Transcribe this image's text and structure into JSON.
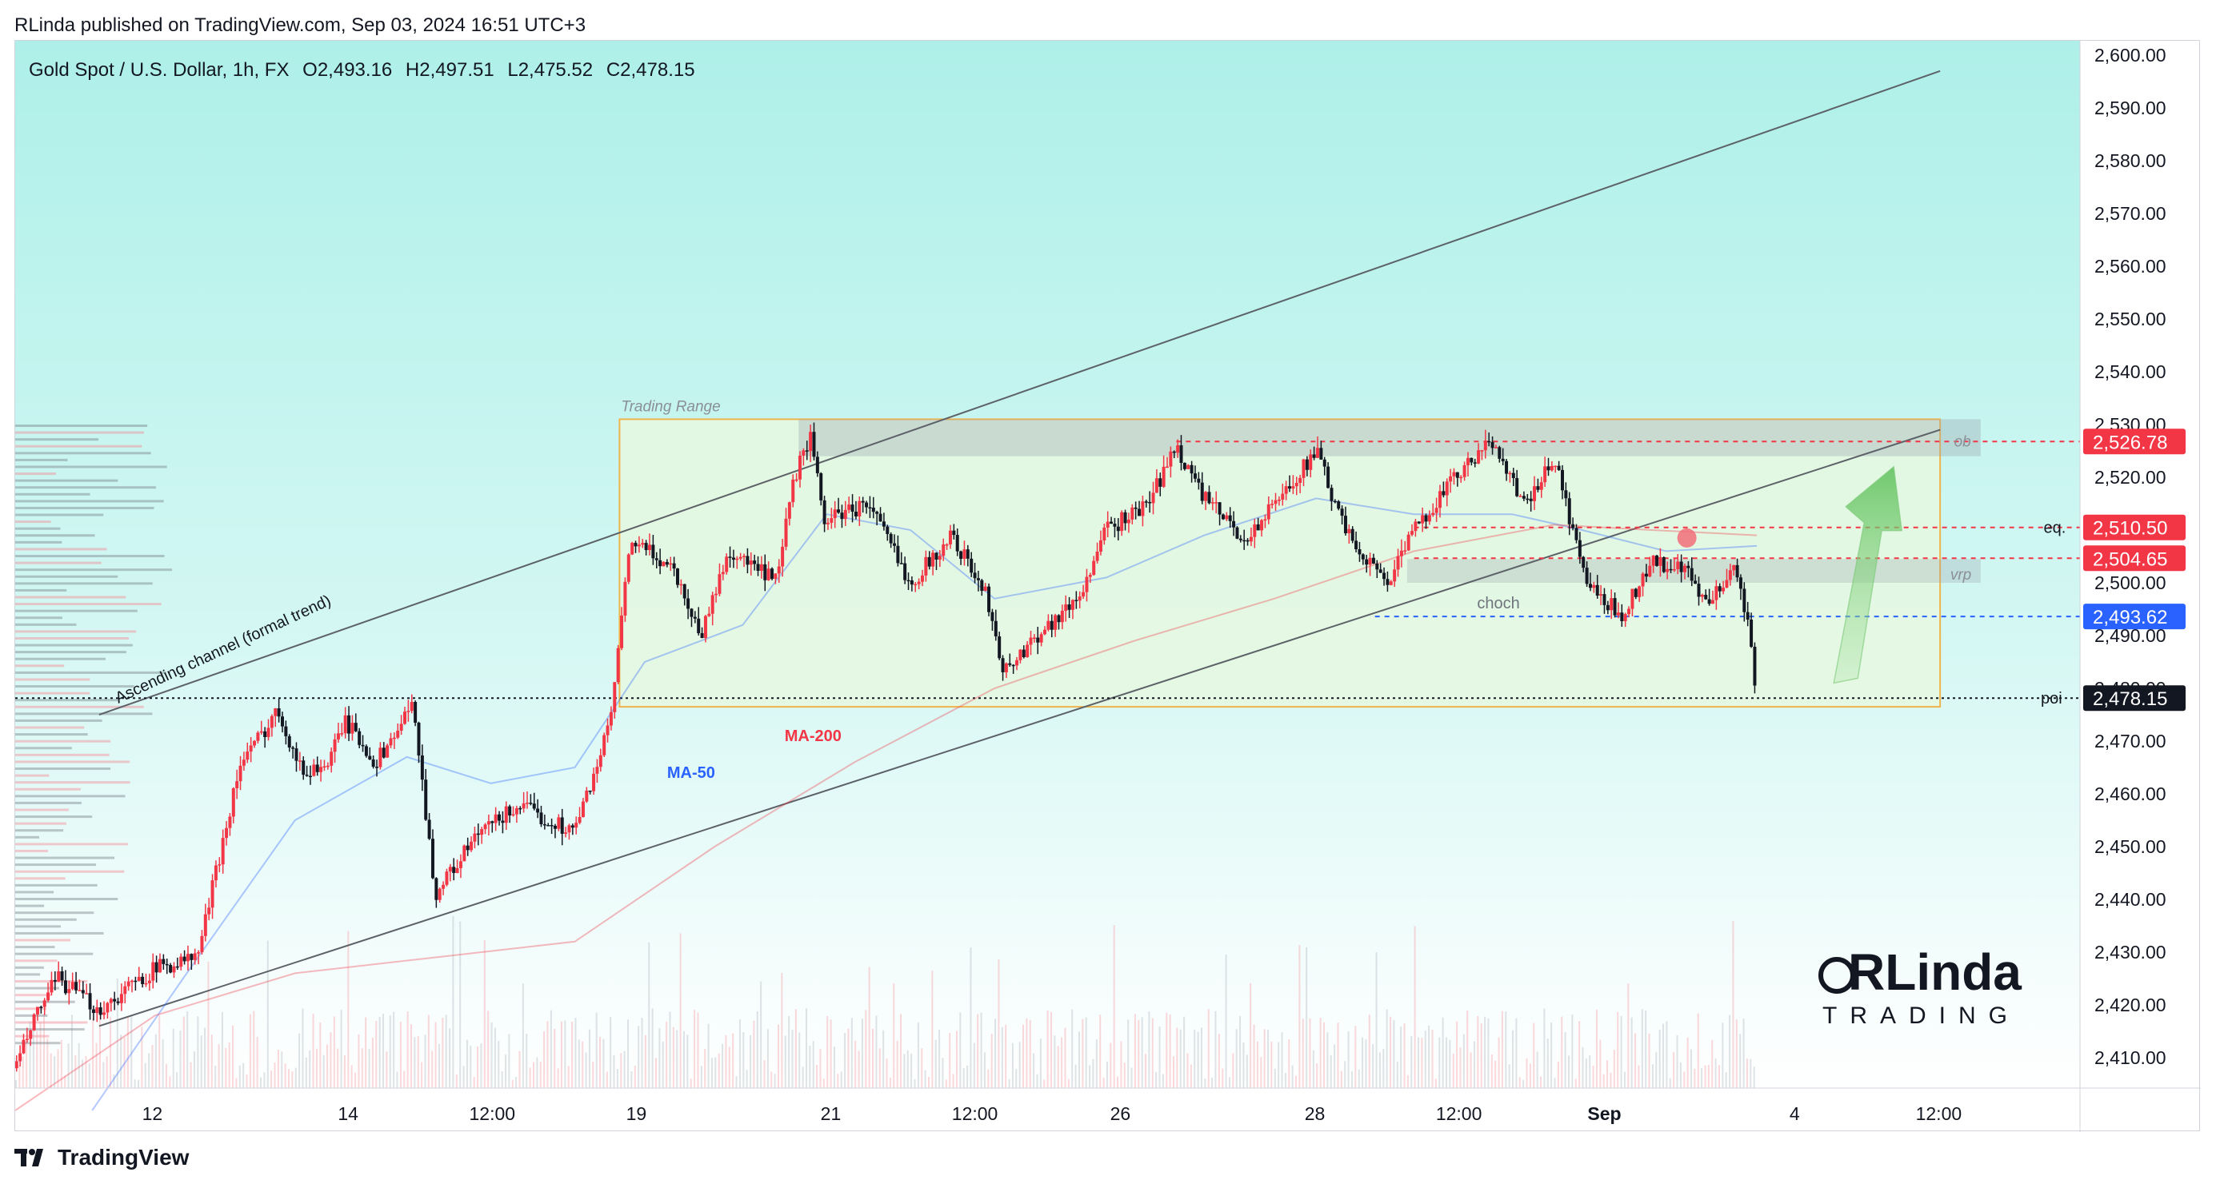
{
  "header": {
    "published_by": "RLinda published on TradingView.com, Sep 03, 2024 16:51 UTC+3"
  },
  "legend": {
    "symbol": "Gold Spot / U.S. Dollar, 1h, FX",
    "open": "O2,493.16",
    "high": "H2,497.51",
    "low": "L2,475.52",
    "close": "C2,478.15"
  },
  "footer": {
    "brand": "TradingView",
    "logo_icon": "tradingview-logo-icon"
  },
  "watermark": {
    "text_top": "RLinda",
    "text_bottom": "TRADING"
  },
  "colors": {
    "up": "#f23645",
    "down": "#131722",
    "ma50": "#2962ff",
    "ma200": "#f23645",
    "range_fill": "#e6f8e0",
    "range_border": "#f0b44c",
    "accent_blue": "#2962ff",
    "accent_red": "#f23645",
    "bg_top": "#aff0ea"
  },
  "chart_data": {
    "type": "candlestick",
    "title": "Gold Spot / U.S. Dollar, 1h, FX",
    "ylim": [
      2400,
      2600
    ],
    "y_ticks": [
      2410,
      2420,
      2430,
      2440,
      2450,
      2460,
      2470,
      2480,
      2490,
      2500,
      2510,
      2520,
      2530,
      2540,
      2550,
      2560,
      2570,
      2580,
      2590,
      2600
    ],
    "y_tick_labels": [
      "2,410.00",
      "2,420.00",
      "2,430.00",
      "2,440.00",
      "2,450.00",
      "2,460.00",
      "2,470.00",
      "2,480.00",
      "2,490.00",
      "2,500.00",
      "2,510.00",
      "2,520.00",
      "2,530.00",
      "2,540.00",
      "2,550.00",
      "2,560.00",
      "2,570.00",
      "2,580.00",
      "2,590.00",
      "2,600.00"
    ],
    "x_ticks": [
      {
        "label": "12",
        "t": 98
      },
      {
        "label": "14",
        "t": 238
      },
      {
        "label": "12:00",
        "t": 341
      },
      {
        "label": "19",
        "t": 444
      },
      {
        "label": "21",
        "t": 583
      },
      {
        "label": "12:00",
        "t": 686
      },
      {
        "label": "26",
        "t": 790
      },
      {
        "label": "28",
        "t": 929
      },
      {
        "label": "12:00",
        "t": 1032
      },
      {
        "label": "Sep",
        "t": 1136
      },
      {
        "label": "4",
        "t": 1272
      },
      {
        "label": "12:00",
        "t": 1375
      }
    ],
    "x_range": [
      0,
      1476
    ],
    "candle_t_end": 1245,
    "price_path": [
      [
        0,
        2408
      ],
      [
        15,
        2418
      ],
      [
        30,
        2425
      ],
      [
        60,
        2419
      ],
      [
        100,
        2427
      ],
      [
        130,
        2429
      ],
      [
        160,
        2465
      ],
      [
        188,
        2476
      ],
      [
        205,
        2464
      ],
      [
        225,
        2466
      ],
      [
        235,
        2474
      ],
      [
        258,
        2466
      ],
      [
        285,
        2477
      ],
      [
        300,
        2441
      ],
      [
        330,
        2452
      ],
      [
        360,
        2458
      ],
      [
        372,
        2456
      ],
      [
        400,
        2453
      ],
      [
        425,
        2473
      ],
      [
        440,
        2508
      ],
      [
        470,
        2503
      ],
      [
        490,
        2490
      ],
      [
        510,
        2506
      ],
      [
        545,
        2500
      ],
      [
        555,
        2518
      ],
      [
        568,
        2528
      ],
      [
        578,
        2512
      ],
      [
        610,
        2515
      ],
      [
        640,
        2500
      ],
      [
        670,
        2509
      ],
      [
        695,
        2497
      ],
      [
        707,
        2483
      ],
      [
        730,
        2490
      ],
      [
        760,
        2497
      ],
      [
        780,
        2510
      ],
      [
        810,
        2515
      ],
      [
        830,
        2526
      ],
      [
        850,
        2516
      ],
      [
        880,
        2508
      ],
      [
        930,
        2525
      ],
      [
        950,
        2510
      ],
      [
        980,
        2500
      ],
      [
        1005,
        2512
      ],
      [
        1030,
        2520
      ],
      [
        1057,
        2527
      ],
      [
        1080,
        2514
      ],
      [
        1100,
        2524
      ],
      [
        1115,
        2508
      ],
      [
        1125,
        2499
      ],
      [
        1148,
        2494
      ],
      [
        1170,
        2504
      ],
      [
        1195,
        2502
      ],
      [
        1210,
        2495
      ],
      [
        1228,
        2504
      ],
      [
        1238,
        2494
      ],
      [
        1245,
        2478
      ]
    ],
    "ma50_path": [
      [
        55,
        2400
      ],
      [
        120,
        2425
      ],
      [
        200,
        2455
      ],
      [
        280,
        2467
      ],
      [
        340,
        2462
      ],
      [
        400,
        2465
      ],
      [
        450,
        2485
      ],
      [
        520,
        2492
      ],
      [
        580,
        2513
      ],
      [
        640,
        2510
      ],
      [
        700,
        2497
      ],
      [
        780,
        2501
      ],
      [
        850,
        2509
      ],
      [
        930,
        2516
      ],
      [
        1000,
        2513
      ],
      [
        1070,
        2513
      ],
      [
        1120,
        2510
      ],
      [
        1180,
        2506
      ],
      [
        1245,
        2507
      ]
    ],
    "ma200_path": [
      [
        0,
        2400
      ],
      [
        100,
        2418
      ],
      [
        200,
        2426
      ],
      [
        300,
        2429
      ],
      [
        400,
        2432
      ],
      [
        500,
        2450
      ],
      [
        600,
        2466
      ],
      [
        700,
        2480
      ],
      [
        800,
        2489
      ],
      [
        900,
        2497
      ],
      [
        1000,
        2506
      ],
      [
        1100,
        2511
      ],
      [
        1170,
        2510
      ],
      [
        1245,
        2509
      ]
    ],
    "ma_labels": {
      "ma50": "MA-50",
      "ma200": "MA-200"
    },
    "price_labels": [
      {
        "value": 2526.78,
        "text": "2,526.78",
        "color": "#f23645"
      },
      {
        "value": 2510.5,
        "text": "2,510.50",
        "color": "#f23645"
      },
      {
        "value": 2504.65,
        "text": "2,504.65",
        "color": "#f23645"
      },
      {
        "value": 2493.62,
        "text": "2,493.62",
        "color": "#2962ff"
      },
      {
        "value": 2478.15,
        "text": "2,478.15",
        "color": "#131722"
      }
    ],
    "annotations": {
      "trading_range": {
        "label": "Trading Range",
        "t0": 432,
        "t1": 1376,
        "y0": 2476.5,
        "y1": 2531
      },
      "ob_zone": {
        "label": "ob",
        "t0": 560,
        "t1": 1405,
        "y0": 2524,
        "y1": 2531
      },
      "vrp_zone": {
        "label": "vrp",
        "t0": 995,
        "t1": 1405,
        "y0": 2500,
        "y1": 2504.5
      },
      "choch": {
        "label": "choch",
        "t0": 972,
        "t1": 1476,
        "y": 2493.62
      },
      "eq": {
        "label": "eq.",
        "t0": 1000,
        "t1": 1476,
        "y": 2510.5
      },
      "ob_line": {
        "label": "ob",
        "t0": 830,
        "t1": 1476,
        "y": 2526.78
      },
      "vrp_line": {
        "t0": 1000,
        "t1": 1476,
        "y": 2504.65
      },
      "poi": {
        "label": "poi",
        "t0": 0,
        "t1": 1476,
        "y": 2478.15
      },
      "channel_upper": {
        "t0": 60,
        "y0": 2475,
        "t1": 1376,
        "y1": 2597
      },
      "channel_lower": {
        "t0": 60,
        "y0": 2416,
        "t1": 1376,
        "y1": 2529
      },
      "channel_label": "Ascending channel (formal trend)",
      "target_dot": {
        "t": 1195,
        "y": 2508.5
      },
      "arrow": {
        "t0": 1300,
        "y0": 2481,
        "t1": 1340,
        "y1": 2522
      }
    },
    "volume_profile_range": [
      2413,
      2531
    ]
  }
}
